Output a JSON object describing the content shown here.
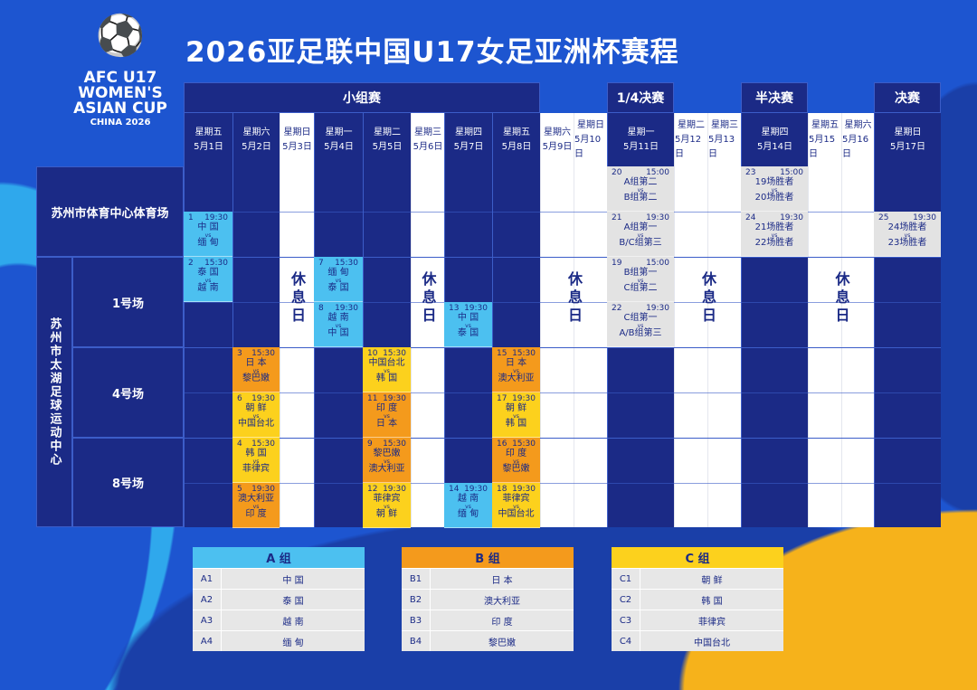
{
  "title": "2026亚足联中国U17女足亚洲杯赛程",
  "logo": {
    "figure": "⚽",
    "line1": "AFC U17",
    "line2": "WOMEN'S",
    "line3": "ASIAN CUP",
    "line4": "CHINA 2026"
  },
  "colors": {
    "group_a": "#4cc0f0",
    "group_b": "#f49a1c",
    "group_c": "#fcd11d",
    "knockout": "#e3e3e3",
    "navy": "#1b2a86"
  },
  "stages": [
    "小组赛",
    "1/4决赛",
    "半决赛",
    "决赛"
  ],
  "days": [
    {
      "weekday": "星期五",
      "date": "5月1日",
      "rest": false
    },
    {
      "weekday": "星期六",
      "date": "5月2日",
      "rest": false
    },
    {
      "weekday": "星期日",
      "date": "5月3日",
      "rest": true
    },
    {
      "weekday": "星期一",
      "date": "5月4日",
      "rest": false
    },
    {
      "weekday": "星期二",
      "date": "5月5日",
      "rest": false
    },
    {
      "weekday": "星期三",
      "date": "5月6日",
      "rest": true
    },
    {
      "weekday": "星期四",
      "date": "5月7日",
      "rest": false
    },
    {
      "weekday": "星期五",
      "date": "5月8日",
      "rest": false
    },
    {
      "weekday": "星期六",
      "date": "5月9日",
      "rest": true
    },
    {
      "weekday": "星期日",
      "date": "5月10日",
      "rest": true
    },
    {
      "weekday": "星期一",
      "date": "5月11日",
      "rest": false
    },
    {
      "weekday": "星期二",
      "date": "5月12日",
      "rest": true
    },
    {
      "weekday": "星期三",
      "date": "5月13日",
      "rest": true
    },
    {
      "weekday": "星期四",
      "date": "5月14日",
      "rest": false
    },
    {
      "weekday": "星期五",
      "date": "5月15日",
      "rest": true
    },
    {
      "weekday": "星期六",
      "date": "5月16日",
      "rest": true
    },
    {
      "weekday": "星期日",
      "date": "5月17日",
      "rest": false
    }
  ],
  "rest_label": "休息日",
  "venues": {
    "stadium": "苏州市体育中心体育场",
    "taihu": "苏州市太湖足球运动中心",
    "pitch1": "1号场",
    "pitch4": "4号场",
    "pitch8": "8号场"
  },
  "vs": "vs",
  "matches": [
    {
      "no": "1",
      "time": "19:30",
      "home": "中 国",
      "away": "缅 甸",
      "day": 0,
      "slot": 1,
      "color": "blue"
    },
    {
      "no": "2",
      "time": "15:30",
      "home": "泰 国",
      "away": "越 南",
      "day": 0,
      "slot": 2,
      "color": "blue"
    },
    {
      "no": "3",
      "time": "15:30",
      "home": "日 本",
      "away": "黎巴嫩",
      "day": 1,
      "slot": 4,
      "color": "orange"
    },
    {
      "no": "6",
      "time": "19:30",
      "home": "朝 鲜",
      "away": "中国台北",
      "day": 1,
      "slot": 5,
      "color": "yellow"
    },
    {
      "no": "4",
      "time": "15:30",
      "home": "韩 国",
      "away": "菲律宾",
      "day": 1,
      "slot": 6,
      "color": "yellow"
    },
    {
      "no": "5",
      "time": "19:30",
      "home": "澳大利亚",
      "away": "印 度",
      "day": 1,
      "slot": 7,
      "color": "orange"
    },
    {
      "no": "7",
      "time": "15:30",
      "home": "缅 甸",
      "away": "泰 国",
      "day": 3,
      "slot": 2,
      "color": "blue"
    },
    {
      "no": "8",
      "time": "19:30",
      "home": "越 南",
      "away": "中 国",
      "day": 3,
      "slot": 3,
      "color": "blue"
    },
    {
      "no": "10",
      "time": "15:30",
      "home": "中国台北",
      "away": "韩 国",
      "day": 4,
      "slot": 4,
      "color": "yellow"
    },
    {
      "no": "11",
      "time": "19:30",
      "home": "印 度",
      "away": "日 本",
      "day": 4,
      "slot": 5,
      "color": "orange"
    },
    {
      "no": "9",
      "time": "15:30",
      "home": "黎巴嫩",
      "away": "澳大利亚",
      "day": 4,
      "slot": 6,
      "color": "orange"
    },
    {
      "no": "12",
      "time": "19:30",
      "home": "菲律宾",
      "away": "朝 鲜",
      "day": 4,
      "slot": 7,
      "color": "yellow"
    },
    {
      "no": "13",
      "time": "19:30",
      "home": "中 国",
      "away": "泰 国",
      "day": 6,
      "slot": 3,
      "color": "blue"
    },
    {
      "no": "14",
      "time": "19:30",
      "home": "越 南",
      "away": "缅 甸",
      "day": 6,
      "slot": 7,
      "color": "blue"
    },
    {
      "no": "15",
      "time": "15:30",
      "home": "日 本",
      "away": "澳大利亚",
      "day": 7,
      "slot": 4,
      "color": "orange"
    },
    {
      "no": "17",
      "time": "19:30",
      "home": "朝 鲜",
      "away": "韩 国",
      "day": 7,
      "slot": 5,
      "color": "yellow"
    },
    {
      "no": "16",
      "time": "15:30",
      "home": "印 度",
      "away": "黎巴嫩",
      "day": 7,
      "slot": 6,
      "color": "orange"
    },
    {
      "no": "18",
      "time": "19:30",
      "home": "菲律宾",
      "away": "中国台北",
      "day": 7,
      "slot": 7,
      "color": "yellow"
    },
    {
      "no": "20",
      "time": "15:00",
      "home": "A组第二",
      "away": "B组第二",
      "day": 10,
      "slot": 0,
      "color": "grey"
    },
    {
      "no": "21",
      "time": "19:30",
      "home": "A组第一",
      "away": "B/C组第三",
      "day": 10,
      "slot": 1,
      "color": "grey"
    },
    {
      "no": "19",
      "time": "15:00",
      "home": "B组第一",
      "away": "C组第二",
      "day": 10,
      "slot": 2,
      "color": "grey"
    },
    {
      "no": "22",
      "time": "19:30",
      "home": "C组第一",
      "away": "A/B组第三",
      "day": 10,
      "slot": 3,
      "color": "grey"
    },
    {
      "no": "23",
      "time": "15:00",
      "home": "19场胜者",
      "away": "20场胜者",
      "day": 13,
      "slot": 0,
      "color": "grey"
    },
    {
      "no": "24",
      "time": "19:30",
      "home": "21场胜者",
      "away": "22场胜者",
      "day": 13,
      "slot": 1,
      "color": "grey"
    },
    {
      "no": "25",
      "time": "19:30",
      "home": "24场胜者",
      "away": "23场胜者",
      "day": 16,
      "slot": 1,
      "color": "grey"
    }
  ],
  "groups": [
    {
      "name": "A 组",
      "color": "#4cc0f0",
      "teams": [
        [
          "A1",
          "中 国"
        ],
        [
          "A2",
          "泰 国"
        ],
        [
          "A3",
          "越 南"
        ],
        [
          "A4",
          "缅 甸"
        ]
      ]
    },
    {
      "name": "B 组",
      "color": "#f49a1c",
      "teams": [
        [
          "B1",
          "日 本"
        ],
        [
          "B2",
          "澳大利亚"
        ],
        [
          "B3",
          "印 度"
        ],
        [
          "B4",
          "黎巴嫩"
        ]
      ]
    },
    {
      "name": "C 组",
      "color": "#fcd11d",
      "teams": [
        [
          "C1",
          "朝 鲜"
        ],
        [
          "C2",
          "韩 国"
        ],
        [
          "C3",
          "菲律宾"
        ],
        [
          "C4",
          "中国台北"
        ]
      ]
    }
  ]
}
